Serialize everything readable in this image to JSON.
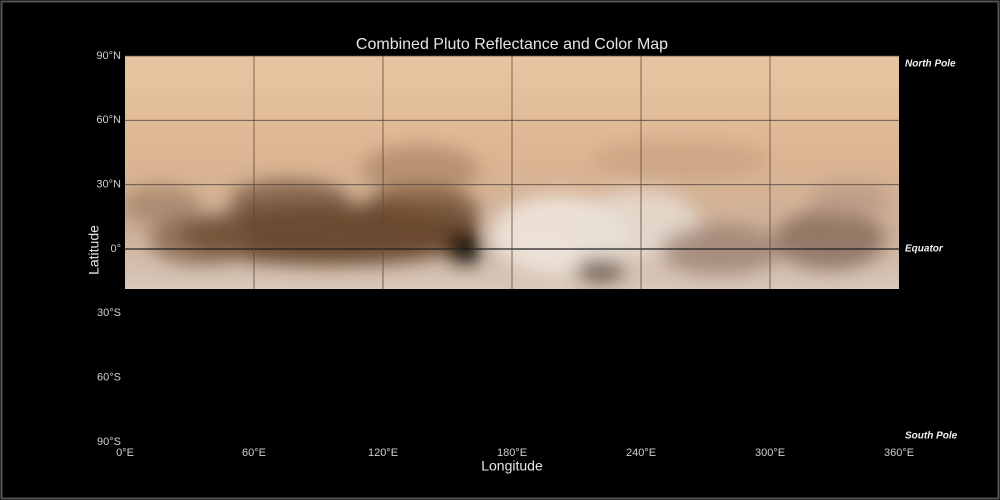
{
  "title": "Combined Pluto Reflectance and Color Map",
  "y_axis": {
    "label": "Latitude",
    "ticks": [
      "90°N",
      "60°N",
      "30°N",
      "0°",
      "30°S",
      "60°S",
      "90°S"
    ]
  },
  "x_axis": {
    "label": "Longitude",
    "ticks": [
      "0°E",
      "60°E",
      "120°E",
      "180°E",
      "240°E",
      "300°E",
      "360°E"
    ]
  },
  "annotations": [
    "North Pole",
    "Equator",
    "South Pole"
  ]
}
